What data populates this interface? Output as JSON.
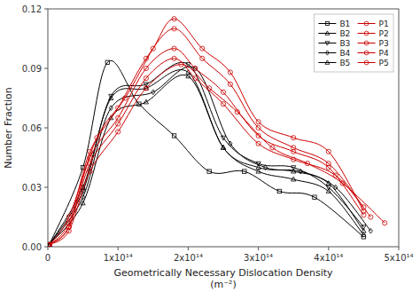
{
  "chart_data": {
    "type": "line",
    "x_label": "Geometrically Necessary Dislocation Density\n(m⁻²)",
    "y_label": "Number Fraction",
    "xlim": [
      0,
      500000000000000.0
    ],
    "ylim": [
      0,
      0.12
    ],
    "xticks": [
      0,
      {
        "value": 100000000000000.0,
        "label": "1x10¹⁴"
      },
      {
        "value": 200000000000000.0,
        "label": "2x10¹⁴"
      },
      {
        "value": 300000000000000.0,
        "label": "3x10¹⁴"
      },
      {
        "value": 400000000000000.0,
        "label": "4x10¹⁴"
      },
      {
        "value": 500000000000000.0,
        "label": "5x10¹⁴"
      }
    ],
    "yticks": [
      {
        "value": 0,
        "label": "0.00"
      },
      0.03,
      0.06,
      0.09,
      0.12
    ],
    "grid": false,
    "legend": "upper right",
    "series": [
      {
        "name": "B1",
        "color": "#000000",
        "marker": "square",
        "x": [
          2000000000000.0,
          50000000000000.0,
          85000000000000.0,
          130000000000000.0,
          180000000000000.0,
          230000000000000.0,
          280000000000000.0,
          330000000000000.0,
          380000000000000.0,
          450000000000000.0
        ],
        "values": [
          0.001,
          0.04,
          0.093,
          0.072,
          0.056,
          0.038,
          0.038,
          0.028,
          0.025,
          0.005
        ]
      },
      {
        "name": "B2",
        "color": "#000000",
        "marker": "triangle-up",
        "x": [
          2000000000000.0,
          50000000000000.0,
          90000000000000.0,
          140000000000000.0,
          200000000000000.0,
          250000000000000.0,
          300000000000000.0,
          350000000000000.0,
          400000000000000.0,
          450000000000000.0
        ],
        "values": [
          0.001,
          0.03,
          0.075,
          0.08,
          0.088,
          0.05,
          0.04,
          0.038,
          0.032,
          0.008
        ]
      },
      {
        "name": "B3",
        "color": "#000000",
        "marker": "triangle-down",
        "x": [
          2000000000000.0,
          50000000000000.0,
          90000000000000.0,
          140000000000000.0,
          200000000000000.0,
          250000000000000.0,
          300000000000000.0,
          350000000000000.0,
          400000000000000.0,
          450000000000000.0
        ],
        "values": [
          0.001,
          0.028,
          0.076,
          0.082,
          0.092,
          0.055,
          0.042,
          0.04,
          0.03,
          0.01
        ]
      },
      {
        "name": "B4",
        "color": "#000000",
        "marker": "diamond",
        "x": [
          2000000000000.0,
          50000000000000.0,
          90000000000000.0,
          150000000000000.0,
          210000000000000.0,
          260000000000000.0,
          310000000000000.0,
          360000000000000.0,
          410000000000000.0,
          460000000000000.0
        ],
        "values": [
          0.001,
          0.025,
          0.07,
          0.078,
          0.09,
          0.052,
          0.04,
          0.038,
          0.03,
          0.008
        ]
      },
      {
        "name": "B5",
        "color": "#000000",
        "marker": "triangle-up",
        "x": [
          2000000000000.0,
          50000000000000.0,
          90000000000000.0,
          140000000000000.0,
          200000000000000.0,
          250000000000000.0,
          300000000000000.0,
          350000000000000.0,
          400000000000000.0,
          450000000000000.0
        ],
        "values": [
          0.001,
          0.022,
          0.065,
          0.073,
          0.086,
          0.05,
          0.038,
          0.034,
          0.028,
          0.006
        ]
      },
      {
        "name": "P1",
        "color": "#cc0000",
        "marker": "circle",
        "x": [
          2000000000000.0,
          30000000000000.0,
          70000000000000.0,
          110000000000000.0,
          150000000000000.0,
          180000000000000.0,
          220000000000000.0,
          260000000000000.0,
          300000000000000.0,
          350000000000000.0,
          400000000000000.0,
          450000000000000.0
        ],
        "values": [
          0.001,
          0.015,
          0.055,
          0.075,
          0.1,
          0.115,
          0.1,
          0.088,
          0.063,
          0.055,
          0.048,
          0.018
        ]
      },
      {
        "name": "P2",
        "color": "#cc0000",
        "marker": "circle",
        "x": [
          2000000000000.0,
          30000000000000.0,
          60000000000000.0,
          100000000000000.0,
          140000000000000.0,
          180000000000000.0,
          220000000000000.0,
          260000000000000.0,
          300000000000000.0,
          350000000000000.0,
          400000000000000.0,
          450000000000000.0
        ],
        "values": [
          0.001,
          0.012,
          0.048,
          0.07,
          0.095,
          0.11,
          0.095,
          0.082,
          0.06,
          0.05,
          0.042,
          0.02
        ]
      },
      {
        "name": "P3",
        "color": "#cc0000",
        "marker": "circle",
        "x": [
          2000000000000.0,
          30000000000000.0,
          60000000000000.0,
          100000000000000.0,
          140000000000000.0,
          180000000000000.0,
          210000000000000.0,
          250000000000000.0,
          300000000000000.0,
          350000000000000.0,
          400000000000000.0,
          450000000000000.0
        ],
        "values": [
          0.001,
          0.01,
          0.045,
          0.065,
          0.09,
          0.1,
          0.09,
          0.078,
          0.056,
          0.048,
          0.04,
          0.016
        ]
      },
      {
        "name": "P4",
        "color": "#cc0000",
        "marker": "circle",
        "x": [
          2000000000000.0,
          30000000000000.0,
          60000000000000.0,
          100000000000000.0,
          140000000000000.0,
          180000000000000.0,
          210000000000000.0,
          250000000000000.0,
          300000000000000.0,
          350000000000000.0,
          410000000000000.0,
          460000000000000.0
        ],
        "values": [
          0.001,
          0.01,
          0.042,
          0.062,
          0.085,
          0.095,
          0.085,
          0.072,
          0.052,
          0.044,
          0.036,
          0.015
        ]
      },
      {
        "name": "P5",
        "color": "#cc0000",
        "marker": "circle",
        "x": [
          2000000000000.0,
          30000000000000.0,
          60000000000000.0,
          100000000000000.0,
          140000000000000.0,
          190000000000000.0,
          230000000000000.0,
          270000000000000.0,
          320000000000000.0,
          370000000000000.0,
          420000000000000.0,
          480000000000000.0
        ],
        "values": [
          0.001,
          0.008,
          0.038,
          0.058,
          0.08,
          0.092,
          0.08,
          0.068,
          0.05,
          0.042,
          0.032,
          0.012
        ]
      }
    ]
  }
}
